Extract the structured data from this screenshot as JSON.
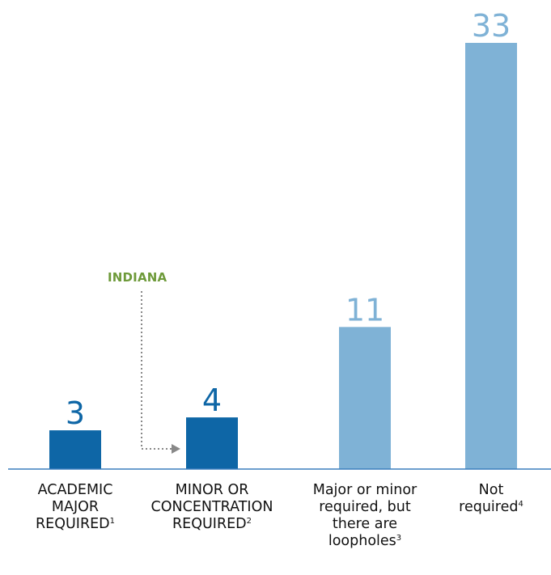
{
  "chart_data": {
    "type": "bar",
    "categories": [
      {
        "line1": "ACADEMIC",
        "line2": "MAJOR",
        "line3": "REQUIRED",
        "line4": "",
        "note": "1"
      },
      {
        "line1": "MINOR OR",
        "line2": "CONCENTRATION",
        "line3": "REQUIRED",
        "line4": "",
        "note": "2"
      },
      {
        "line1": "Major or minor",
        "line2": "required, but",
        "line3": "there are",
        "line4": "loopholes",
        "note": "3"
      },
      {
        "line1": "Not",
        "line2": "required",
        "line3": "",
        "line4": "",
        "note": "4"
      }
    ],
    "values": [
      3,
      4,
      11,
      33
    ],
    "colors": [
      "#0e66a6",
      "#0e66a6",
      "#7fb2d6",
      "#7fb2d6"
    ],
    "label_colors": [
      "#0e66a6",
      "#0e66a6",
      "#7fb2d6",
      "#7fb2d6"
    ],
    "axis_color": "#3b7fbe",
    "ylim": [
      0,
      33
    ],
    "title": "",
    "xlabel": "",
    "ylabel": "",
    "annotation": {
      "text": "INDIANA",
      "color": "#6e9a3a",
      "target_index": 1,
      "arrow_color": "#888888"
    }
  }
}
